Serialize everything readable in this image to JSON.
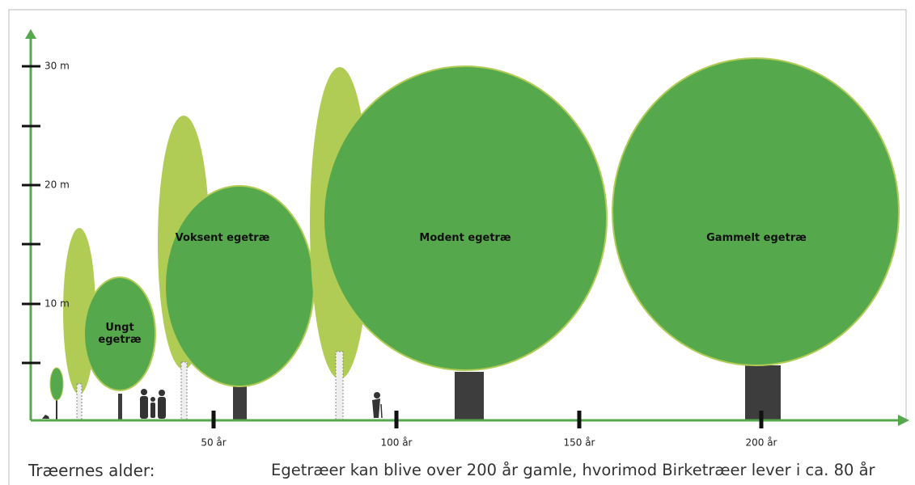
{
  "y_axis": {
    "ticks": [
      "30 m",
      "20 m",
      "10 m"
    ]
  },
  "x_axis": {
    "ticks": [
      "50 år",
      "100 år",
      "150 år",
      "200 år"
    ]
  },
  "trees": [
    {
      "label": "Ungt egetræ"
    },
    {
      "label": "Voksent egetræ"
    },
    {
      "label": "Modent egetræ"
    },
    {
      "label": "Gammelt egetræ"
    }
  ],
  "footer": {
    "label": "Træernes alder:",
    "note": "Egetræer kan blive over 200 år gamle, hvorimod Birketræer lever i ca. 80 år"
  }
}
